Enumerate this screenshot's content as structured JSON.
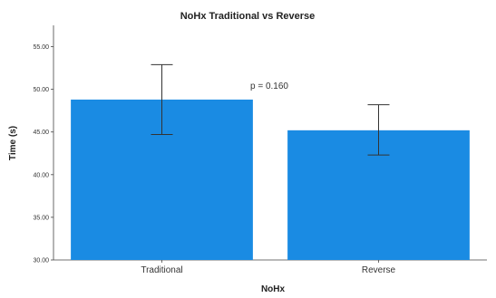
{
  "chart_data": {
    "type": "bar",
    "title": "NoHx Traditional vs Reverse",
    "xlabel": "NoHx",
    "ylabel": "Time (s)",
    "categories": [
      "Traditional",
      "Reverse"
    ],
    "values": [
      48.8,
      45.2
    ],
    "error_low": [
      44.7,
      42.3
    ],
    "error_high": [
      52.9,
      48.2
    ],
    "ylim": [
      30,
      57.5
    ],
    "yticks": [
      "30.00",
      "35.00",
      "40.00",
      "45.00",
      "50.00",
      "55.00"
    ],
    "ytick_values": [
      30,
      35,
      40,
      45,
      50,
      55
    ],
    "annotation": "p = 0.160",
    "bar_color": "#1a8be3",
    "grid": false,
    "legend": "none"
  }
}
